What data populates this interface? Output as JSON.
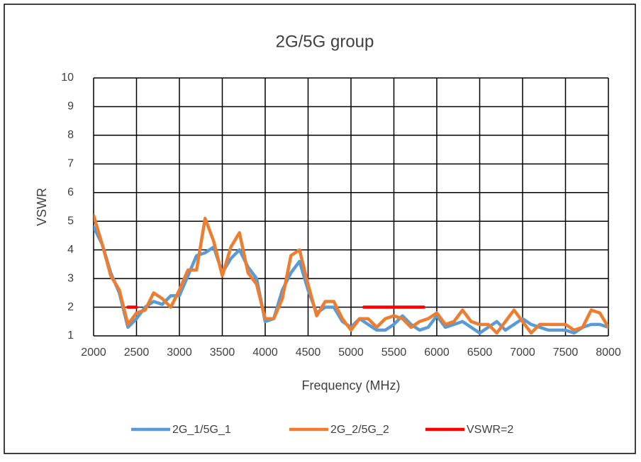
{
  "chart_data": {
    "type": "line",
    "title": "2G/5G group",
    "x_label": "Frequency (MHz)",
    "y_label": "VSWR",
    "x": [
      2000,
      2100,
      2200,
      2300,
      2400,
      2500,
      2600,
      2700,
      2800,
      2900,
      3000,
      3100,
      3200,
      3300,
      3400,
      3500,
      3600,
      3700,
      3800,
      3900,
      4000,
      4100,
      4200,
      4300,
      4400,
      4500,
      4600,
      4700,
      4800,
      4900,
      5000,
      5100,
      5200,
      5300,
      5400,
      5500,
      5600,
      5700,
      5800,
      5900,
      6000,
      6100,
      6200,
      6300,
      6400,
      6500,
      6600,
      6700,
      6800,
      6900,
      7000,
      7100,
      7200,
      7300,
      7400,
      7500,
      7600,
      7700,
      7800,
      7900,
      8000
    ],
    "series": [
      {
        "name": "2G_1/5G_1",
        "color": "#5b9bd5",
        "values": [
          4.8,
          4.2,
          3.2,
          2.5,
          1.3,
          1.6,
          2.0,
          2.2,
          2.1,
          2.4,
          2.4,
          3.1,
          3.8,
          3.9,
          4.1,
          3.2,
          3.7,
          4.0,
          3.4,
          3.0,
          1.5,
          1.6,
          2.6,
          3.2,
          3.6,
          2.6,
          1.8,
          2.0,
          2.0,
          1.5,
          1.3,
          1.6,
          1.4,
          1.2,
          1.2,
          1.4,
          1.7,
          1.4,
          1.2,
          1.3,
          1.7,
          1.3,
          1.4,
          1.5,
          1.3,
          1.1,
          1.3,
          1.5,
          1.2,
          1.4,
          1.6,
          1.4,
          1.3,
          1.2,
          1.2,
          1.2,
          1.1,
          1.3,
          1.4,
          1.4,
          1.3
        ]
      },
      {
        "name": "2G_2/5G_2",
        "color": "#ed7d31",
        "values": [
          5.2,
          4.2,
          3.1,
          2.6,
          1.4,
          1.8,
          1.9,
          2.5,
          2.3,
          2.0,
          2.6,
          3.3,
          3.3,
          5.1,
          4.3,
          3.1,
          4.1,
          4.6,
          3.2,
          2.8,
          1.6,
          1.6,
          2.3,
          3.8,
          4.0,
          2.8,
          1.7,
          2.2,
          2.2,
          1.6,
          1.2,
          1.6,
          1.6,
          1.3,
          1.6,
          1.7,
          1.6,
          1.3,
          1.5,
          1.6,
          1.8,
          1.4,
          1.5,
          1.9,
          1.5,
          1.4,
          1.4,
          1.1,
          1.5,
          1.9,
          1.5,
          1.1,
          1.4,
          1.4,
          1.4,
          1.4,
          1.2,
          1.3,
          1.9,
          1.8,
          1.3
        ]
      },
      {
        "name": "VSWR=2",
        "color": "#ff0000",
        "x": [
          2400,
          2500,
          2500,
          5150,
          5850
        ],
        "values": [
          2,
          2,
          null,
          2,
          2
        ]
      }
    ],
    "xlim": [
      2000,
      8000
    ],
    "xticks": [
      2000,
      2500,
      3000,
      3500,
      4000,
      4500,
      5000,
      5500,
      6000,
      6500,
      7000,
      7500,
      8000
    ],
    "ylim": [
      1,
      10
    ],
    "yticks": [
      1,
      2,
      3,
      4,
      5,
      6,
      7,
      8,
      9,
      10
    ],
    "grid": true,
    "legend": "bottom"
  }
}
